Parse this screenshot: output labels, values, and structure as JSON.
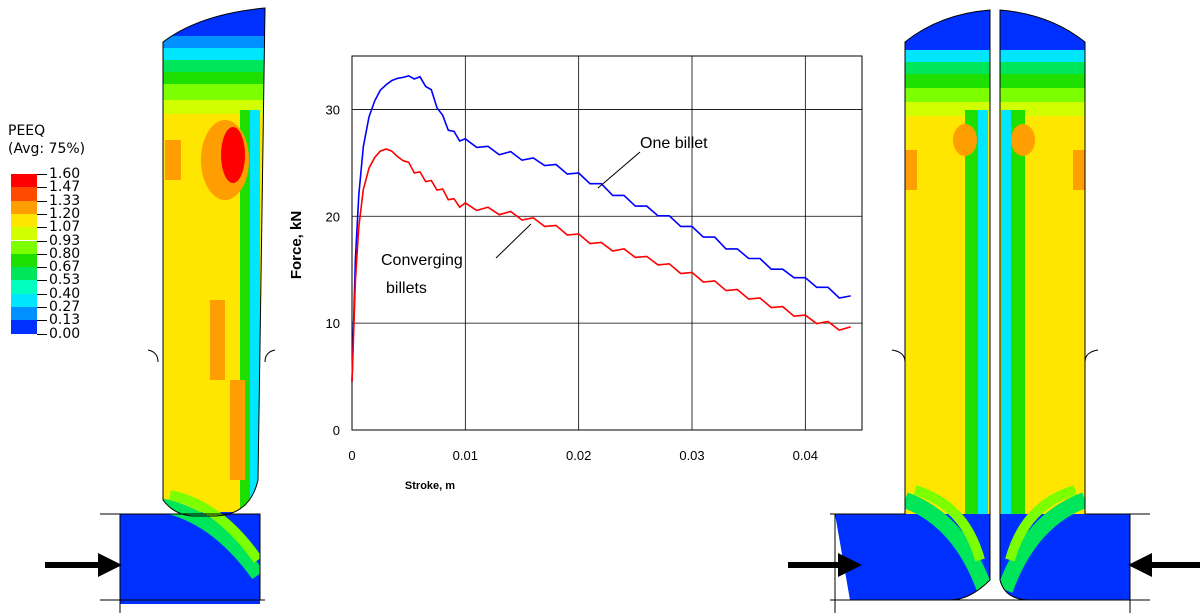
{
  "legend": {
    "title_line1": "PEEQ",
    "title_line2": "(Avg: 75%)",
    "levels": [
      "1.60",
      "1.47",
      "1.33",
      "1.20",
      "1.07",
      "0.93",
      "0.80",
      "0.67",
      "0.53",
      "0.40",
      "0.27",
      "0.13",
      "0.00"
    ],
    "colors": [
      "#ff0000",
      "#ff4a00",
      "#ff9e00",
      "#ffe600",
      "#d2ff00",
      "#7cff00",
      "#1ee000",
      "#00e65a",
      "#00ffc0",
      "#00e6ff",
      "#0090ff",
      "#0030ff"
    ]
  },
  "chart_data": {
    "type": "line",
    "xlabel": "Stroke, m",
    "ylabel": "Force, kN",
    "xlim": [
      0,
      0.045
    ],
    "ylim": [
      0,
      35
    ],
    "xticks": [
      0,
      0.01,
      0.02,
      0.03,
      0.04
    ],
    "xtick_labels": [
      "0",
      "0.01",
      "0.02",
      "0.03",
      "0.04"
    ],
    "yticks": [
      0,
      10,
      20,
      30
    ],
    "ytick_labels": [
      "0",
      "10",
      "20",
      "30"
    ],
    "grid": true,
    "series": [
      {
        "name": "One billet",
        "color": "#0000ff",
        "x": [
          0,
          0.0003,
          0.0006,
          0.001,
          0.0015,
          0.002,
          0.0025,
          0.003,
          0.0035,
          0.004,
          0.0045,
          0.005,
          0.0055,
          0.006,
          0.0065,
          0.007,
          0.0075,
          0.008,
          0.0085,
          0.009,
          0.0095,
          0.01,
          0.011,
          0.012,
          0.013,
          0.014,
          0.015,
          0.016,
          0.017,
          0.018,
          0.019,
          0.02,
          0.021,
          0.022,
          0.023,
          0.024,
          0.025,
          0.026,
          0.027,
          0.028,
          0.029,
          0.03,
          0.031,
          0.032,
          0.033,
          0.034,
          0.035,
          0.036,
          0.037,
          0.038,
          0.039,
          0.04,
          0.041,
          0.042,
          0.043,
          0.044
        ],
        "y": [
          4.5,
          16,
          22,
          26.5,
          29.3,
          30.8,
          31.8,
          32.3,
          32.7,
          32.9,
          33.0,
          32.9,
          33.1,
          32.8,
          32.4,
          31.6,
          30.4,
          29.2,
          28.3,
          27.7,
          27.3,
          27.0,
          26.7,
          26.3,
          26.0,
          25.8,
          25.5,
          25.2,
          25.0,
          24.6,
          24.2,
          23.8,
          23.3,
          22.8,
          22.2,
          21.7,
          21.2,
          20.7,
          20.3,
          19.8,
          19.3,
          18.8,
          18.3,
          17.8,
          17.2,
          16.7,
          16.3,
          15.8,
          15.3,
          14.8,
          14.5,
          14.0,
          13.6,
          13.1,
          12.6,
          12.3
        ],
        "label": "One billet"
      },
      {
        "name": "Converging billets",
        "color": "#ff0000",
        "x": [
          0,
          0.0003,
          0.0006,
          0.001,
          0.0015,
          0.002,
          0.0025,
          0.003,
          0.0035,
          0.004,
          0.0045,
          0.005,
          0.0055,
          0.006,
          0.0065,
          0.007,
          0.0075,
          0.008,
          0.0085,
          0.009,
          0.0095,
          0.01,
          0.011,
          0.012,
          0.013,
          0.014,
          0.015,
          0.016,
          0.017,
          0.018,
          0.019,
          0.02,
          0.021,
          0.022,
          0.023,
          0.024,
          0.025,
          0.026,
          0.027,
          0.028,
          0.029,
          0.03,
          0.031,
          0.032,
          0.033,
          0.034,
          0.035,
          0.036,
          0.037,
          0.038,
          0.039,
          0.04,
          0.041,
          0.042,
          0.043,
          0.044
        ],
        "y": [
          4.5,
          14,
          19,
          22.5,
          24.5,
          25.5,
          26.1,
          26.3,
          26.1,
          25.6,
          25.2,
          24.8,
          24.3,
          23.9,
          23.5,
          23.1,
          22.7,
          22.3,
          21.8,
          21.4,
          21.1,
          21.0,
          20.8,
          20.6,
          20.4,
          20.2,
          19.9,
          19.6,
          19.3,
          18.9,
          18.5,
          18.1,
          17.7,
          17.3,
          17.0,
          16.7,
          16.4,
          16.0,
          15.7,
          15.3,
          14.9,
          14.5,
          14.1,
          13.7,
          13.3,
          12.9,
          12.5,
          12.1,
          11.7,
          11.3,
          10.9,
          10.5,
          10.2,
          9.9,
          9.6,
          9.4
        ],
        "label_line1": "Converging",
        "label_line2": "billets"
      }
    ]
  }
}
